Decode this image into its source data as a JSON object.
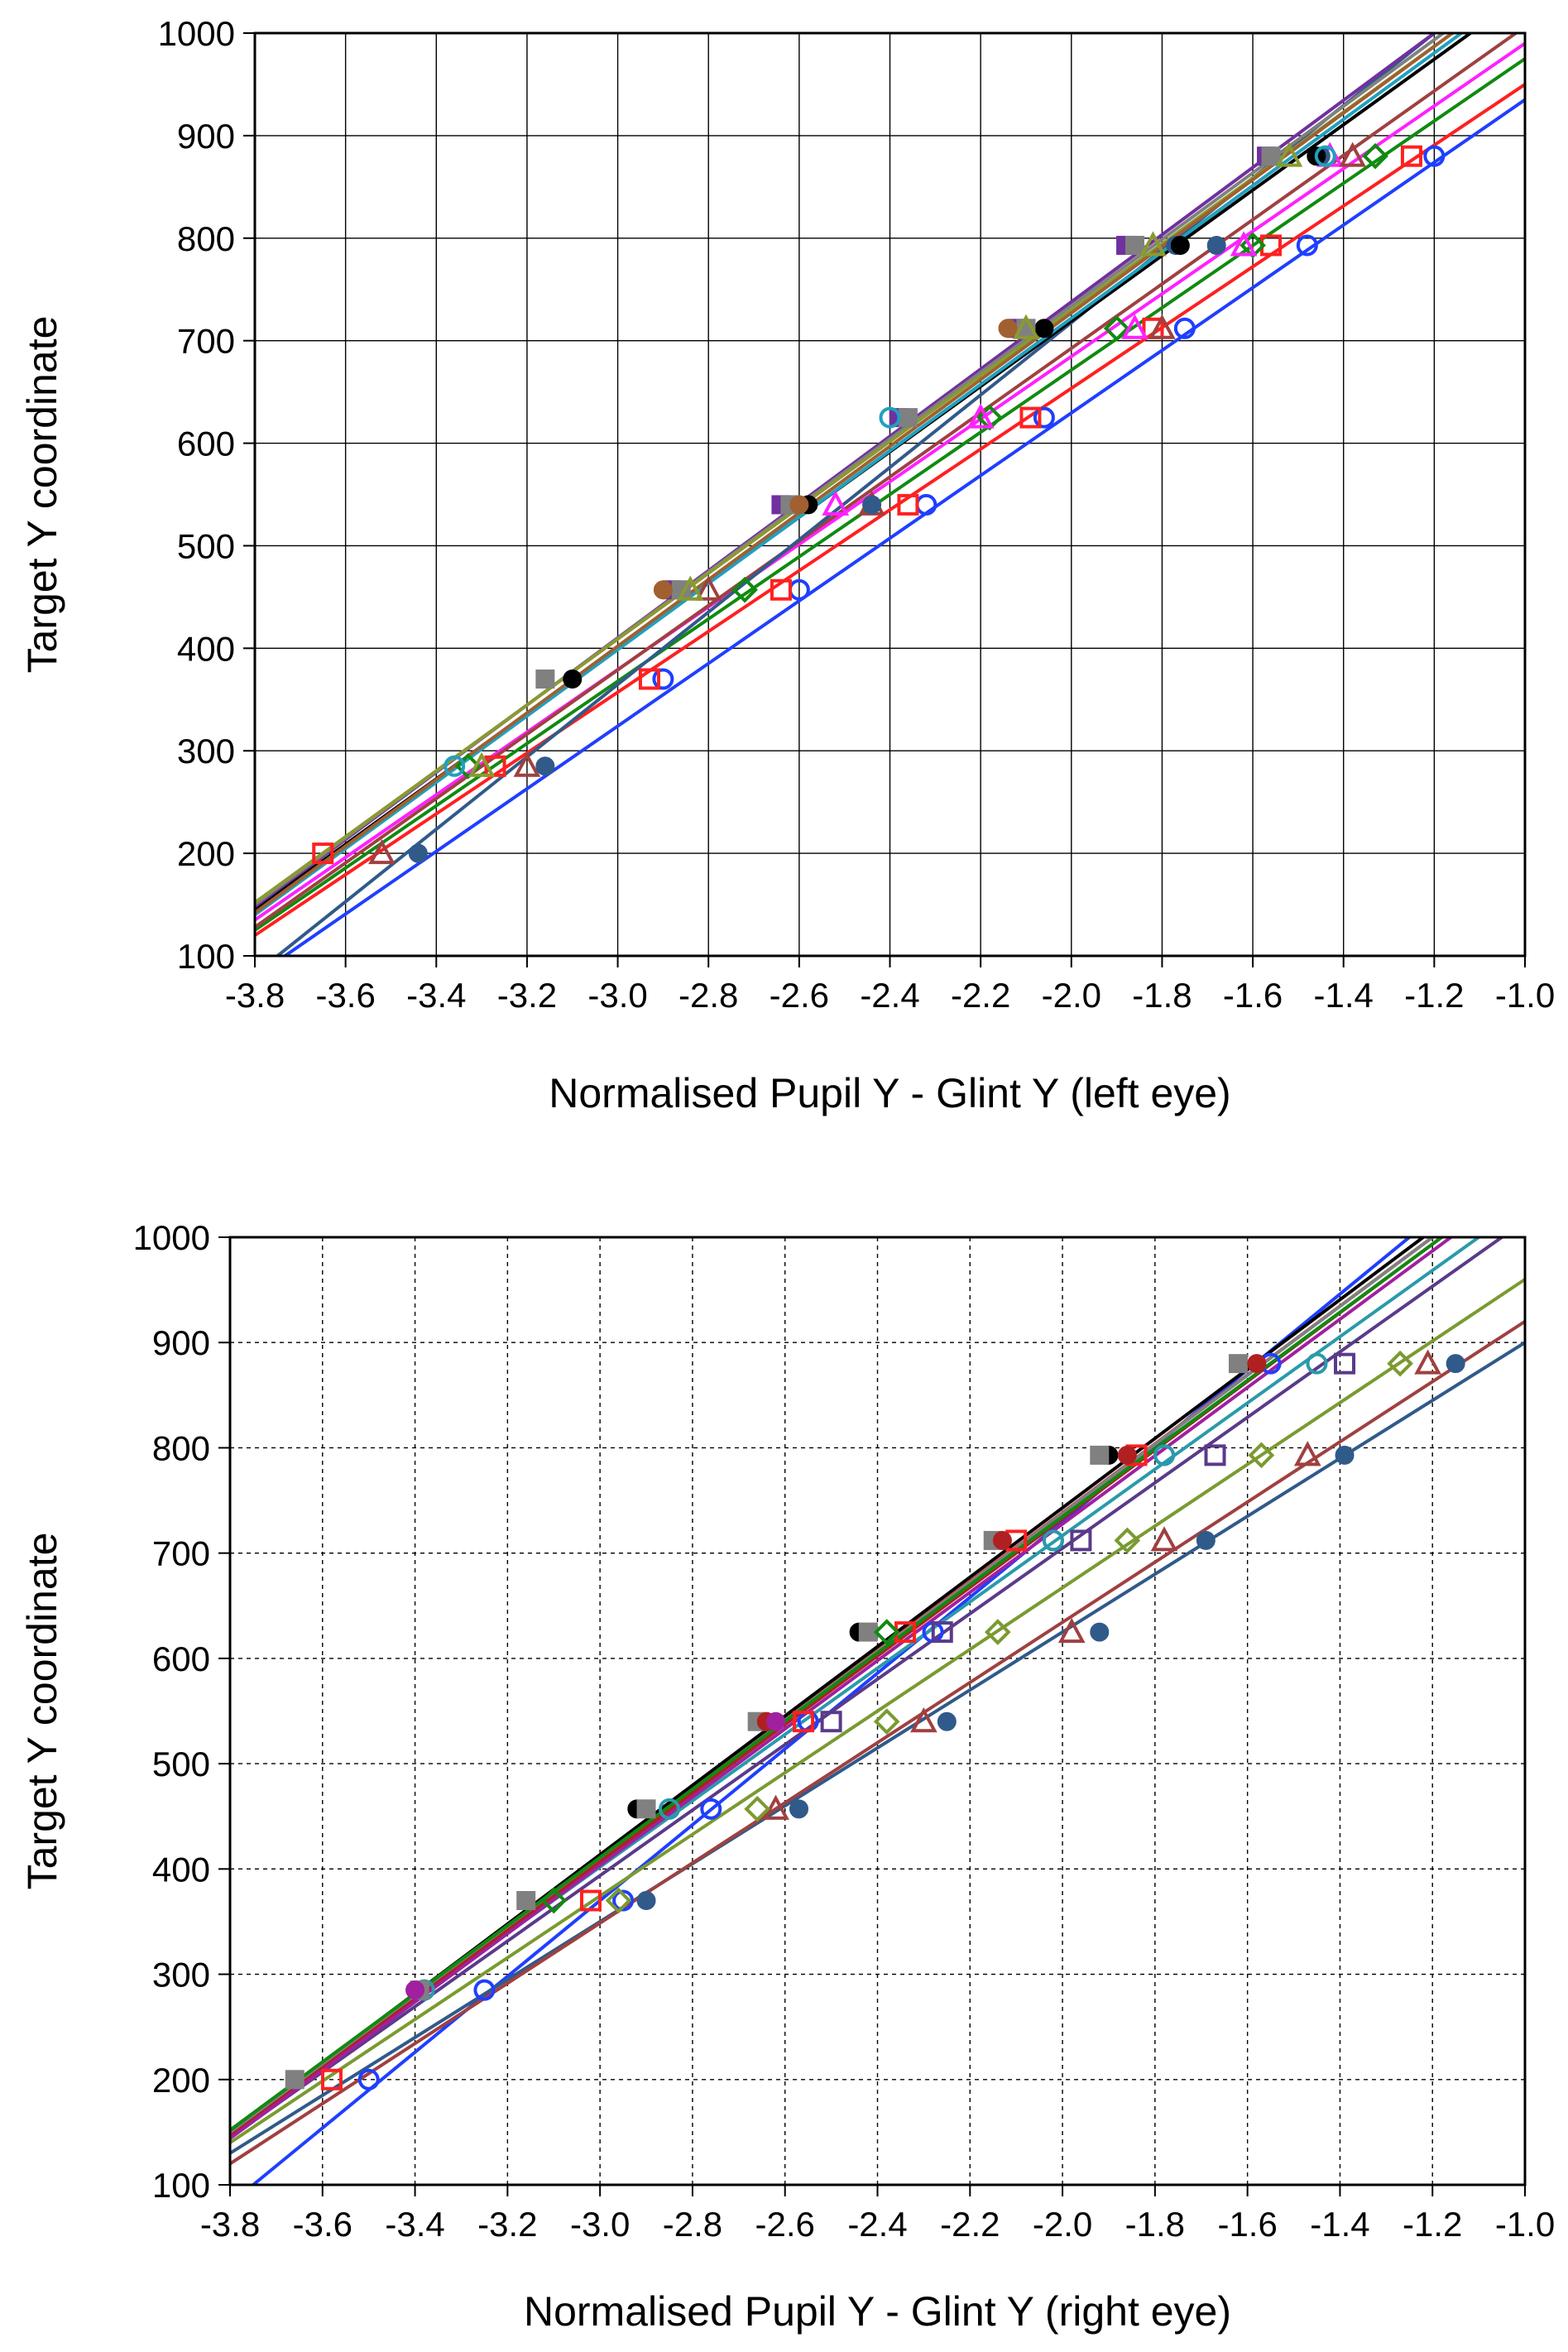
{
  "chart_data": [
    {
      "type": "scatter",
      "title": "",
      "xlabel": "Normalised Pupil Y - Glint Y (left eye)",
      "ylabel": "Target Y coordinate",
      "xlim": [
        -3.8,
        -1.0
      ],
      "ylim": [
        100,
        1000
      ],
      "x_ticks": [
        "-3.8",
        "-3.6",
        "-3.4",
        "-3.2",
        "-3.0",
        "-2.8",
        "-2.6",
        "-2.4",
        "-2.2",
        "-2.0",
        "-1.8",
        "-1.6",
        "-1.4",
        "-1.2",
        "-1.0"
      ],
      "y_ticks": [
        "100",
        "200",
        "300",
        "400",
        "500",
        "600",
        "700",
        "800",
        "900",
        "1000"
      ],
      "grid": "solid",
      "legend": "none",
      "series": [
        {
          "color": "#1f3fff",
          "marker": "circle-open",
          "line": [
            [
              -3.75,
              95
            ],
            [
              -1.0,
              935
            ]
          ],
          "points": [
            [
              -2.9,
              370
            ],
            [
              -2.6,
              457
            ],
            [
              -2.32,
              540
            ],
            [
              -2.06,
              625
            ],
            [
              -1.75,
              712
            ],
            [
              -1.48,
              793
            ],
            [
              -1.2,
              880
            ]
          ]
        },
        {
          "color": "#ff2020",
          "marker": "square-open",
          "line": [
            [
              -3.8,
              120
            ],
            [
              -1.0,
              950
            ]
          ],
          "points": [
            [
              -3.65,
              200
            ],
            [
              -3.27,
              285
            ],
            [
              -2.93,
              370
            ],
            [
              -2.64,
              457
            ],
            [
              -2.36,
              540
            ],
            [
              -2.09,
              625
            ],
            [
              -1.82,
              712
            ],
            [
              -1.56,
              793
            ],
            [
              -1.25,
              880
            ]
          ]
        },
        {
          "color": "#108a10",
          "marker": "diamond-open",
          "line": [
            [
              -3.8,
              125
            ],
            [
              -1.0,
              975
            ]
          ],
          "points": [
            [
              -3.33,
              285
            ],
            [
              -2.72,
              457
            ],
            [
              -2.18,
              625
            ],
            [
              -1.9,
              712
            ],
            [
              -1.6,
              793
            ],
            [
              -1.33,
              880
            ]
          ]
        },
        {
          "color": "#ff20ff",
          "marker": "triangle-open",
          "line": [
            [
              -3.8,
              135
            ],
            [
              -1.0,
              990
            ]
          ],
          "points": [
            [
              -2.52,
              540
            ],
            [
              -2.2,
              625
            ],
            [
              -1.86,
              712
            ],
            [
              -1.62,
              793
            ],
            [
              -1.43,
              880
            ]
          ]
        },
        {
          "color": "#a04040",
          "marker": "triangle-open",
          "line": [
            [
              -3.8,
              128
            ],
            [
              -1.02,
              1000
            ]
          ],
          "points": [
            [
              -3.52,
              200
            ],
            [
              -3.2,
              285
            ],
            [
              -2.8,
              457
            ],
            [
              -2.44,
              540
            ],
            [
              -1.8,
              712
            ],
            [
              -1.38,
              880
            ]
          ]
        },
        {
          "color": "#305a8a",
          "marker": "circle-filled",
          "line": [
            [
              -3.75,
              100
            ],
            [
              -1.2,
              1000
            ]
          ],
          "points": [
            [
              -3.44,
              200
            ],
            [
              -3.16,
              285
            ],
            [
              -2.44,
              540
            ],
            [
              -1.77,
              793
            ],
            [
              -1.68,
              793
            ],
            [
              -1.45,
              880
            ]
          ]
        },
        {
          "color": "#000000",
          "marker": "circle-filled",
          "line": [
            [
              -3.8,
              145
            ],
            [
              -1.12,
              1000
            ]
          ],
          "points": [
            [
              -3.1,
              370
            ],
            [
              -2.58,
              540
            ],
            [
              -2.06,
              712
            ],
            [
              -1.76,
              793
            ],
            [
              -1.46,
              880
            ]
          ]
        },
        {
          "color": "#7030a0",
          "marker": "square-filled",
          "line": [
            [
              -3.8,
              148
            ],
            [
              -1.2,
              1000
            ]
          ],
          "points": [
            [
              -2.88,
              457
            ],
            [
              -2.64,
              540
            ],
            [
              -2.38,
              625
            ],
            [
              -2.12,
              712
            ],
            [
              -1.88,
              793
            ],
            [
              -1.57,
              880
            ]
          ]
        },
        {
          "color": "#808080",
          "marker": "square-filled",
          "line": [
            [
              -3.8,
              150
            ],
            [
              -1.18,
              1000
            ]
          ],
          "points": [
            [
              -3.16,
              370
            ],
            [
              -2.86,
              457
            ],
            [
              -2.62,
              540
            ],
            [
              -2.36,
              625
            ],
            [
              -2.1,
              712
            ],
            [
              -1.86,
              793
            ],
            [
              -1.56,
              880
            ]
          ]
        },
        {
          "color": "#8a9a30",
          "marker": "triangle-open",
          "line": [
            [
              -3.8,
              152
            ],
            [
              -1.16,
              1000
            ]
          ],
          "points": [
            [
              -3.3,
              285
            ],
            [
              -2.84,
              457
            ],
            [
              -2.1,
              712
            ],
            [
              -1.82,
              793
            ],
            [
              -1.52,
              880
            ]
          ]
        },
        {
          "color": "#20a0c0",
          "marker": "circle-open",
          "line": [
            [
              -3.8,
              140
            ],
            [
              -1.14,
              1000
            ]
          ],
          "points": [
            [
              -3.36,
              285
            ],
            [
              -2.4,
              625
            ],
            [
              -1.44,
              880
            ]
          ]
        },
        {
          "color": "#a06030",
          "marker": "circle-filled",
          "line": [
            [
              -3.8,
              142
            ],
            [
              -1.16,
              1000
            ]
          ],
          "points": [
            [
              -2.9,
              457
            ],
            [
              -2.6,
              540
            ],
            [
              -2.14,
              712
            ]
          ]
        }
      ]
    },
    {
      "type": "scatter",
      "title": "",
      "xlabel": "Normalised Pupil Y - Glint Y (right eye)",
      "ylabel": "Target Y coordinate",
      "xlim": [
        -3.8,
        -1.0
      ],
      "ylim": [
        100,
        1000
      ],
      "x_ticks": [
        "-3.8",
        "-3.6",
        "-3.4",
        "-3.2",
        "-3.0",
        "-2.8",
        "-2.6",
        "-2.4",
        "-2.2",
        "-2.0",
        "-1.8",
        "-1.6",
        "-1.4",
        "-1.2",
        "-1.0"
      ],
      "y_ticks": [
        "100",
        "200",
        "300",
        "400",
        "500",
        "600",
        "700",
        "800",
        "900",
        "1000"
      ],
      "grid": "dotted",
      "legend": "none",
      "series": [
        {
          "color": "#1f3fff",
          "marker": "circle-open",
          "line": [
            [
              -3.75,
              100
            ],
            [
              -1.25,
              1000
            ]
          ],
          "points": [
            [
              -3.5,
              200
            ],
            [
              -3.25,
              285
            ],
            [
              -2.95,
              370
            ],
            [
              -2.76,
              457
            ],
            [
              -2.55,
              540
            ],
            [
              -2.28,
              625
            ],
            [
              -2.02,
              712
            ],
            [
              -1.78,
              793
            ],
            [
              -1.55,
              880
            ]
          ]
        },
        {
          "color": "#305a8a",
          "marker": "circle-filled",
          "line": [
            [
              -3.8,
              130
            ],
            [
              -1.0,
              900
            ]
          ],
          "points": [
            [
              -2.9,
              370
            ],
            [
              -2.57,
              457
            ],
            [
              -2.25,
              540
            ],
            [
              -1.92,
              625
            ],
            [
              -1.69,
              712
            ],
            [
              -1.39,
              793
            ],
            [
              -1.15,
              880
            ]
          ]
        },
        {
          "color": "#a04040",
          "marker": "triangle-open",
          "line": [
            [
              -3.8,
              120
            ],
            [
              -1.0,
              920
            ]
          ],
          "points": [
            [
              -2.62,
              457
            ],
            [
              -2.3,
              540
            ],
            [
              -1.98,
              625
            ],
            [
              -1.78,
              712
            ],
            [
              -1.47,
              793
            ],
            [
              -1.21,
              880
            ]
          ]
        },
        {
          "color": "#7a9a30",
          "marker": "diamond-open",
          "line": [
            [
              -3.8,
              140
            ],
            [
              -1.0,
              960
            ]
          ],
          "points": [
            [
              -2.96,
              370
            ],
            [
              -2.66,
              457
            ],
            [
              -2.38,
              540
            ],
            [
              -2.14,
              625
            ],
            [
              -1.86,
              712
            ],
            [
              -1.57,
              793
            ],
            [
              -1.27,
              880
            ]
          ]
        },
        {
          "color": "#5a3a8a",
          "marker": "square-open",
          "line": [
            [
              -3.8,
              145
            ],
            [
              -1.05,
              1000
            ]
          ],
          "points": [
            [
              -2.5,
              540
            ],
            [
              -2.26,
              625
            ],
            [
              -1.96,
              712
            ],
            [
              -1.67,
              793
            ],
            [
              -1.39,
              880
            ]
          ]
        },
        {
          "color": "#2a9aaa",
          "marker": "circle-open",
          "line": [
            [
              -3.8,
              150
            ],
            [
              -1.1,
              1000
            ]
          ],
          "points": [
            [
              -3.38,
              285
            ],
            [
              -2.85,
              457
            ],
            [
              -2.02,
              712
            ],
            [
              -1.78,
              793
            ],
            [
              -1.45,
              880
            ]
          ]
        },
        {
          "color": "#ff2020",
          "marker": "square-open",
          "line": [
            [
              -3.8,
              150
            ],
            [
              -1.2,
              1000
            ]
          ],
          "points": [
            [
              -3.58,
              200
            ],
            [
              -3.02,
              370
            ],
            [
              -2.56,
              540
            ],
            [
              -2.34,
              625
            ],
            [
              -2.1,
              712
            ],
            [
              -1.84,
              793
            ]
          ]
        },
        {
          "color": "#000000",
          "marker": "circle-filled",
          "line": [
            [
              -3.8,
              150
            ],
            [
              -1.22,
              1000
            ]
          ],
          "points": [
            [
              -2.92,
              457
            ],
            [
              -2.44,
              625
            ],
            [
              -1.9,
              793
            ]
          ]
        },
        {
          "color": "#808080",
          "marker": "square-filled",
          "line": [
            [
              -3.8,
              148
            ],
            [
              -1.2,
              1000
            ]
          ],
          "points": [
            [
              -3.66,
              200
            ],
            [
              -3.39,
              285
            ],
            [
              -3.16,
              370
            ],
            [
              -2.9,
              457
            ],
            [
              -2.66,
              540
            ],
            [
              -2.42,
              625
            ],
            [
              -2.15,
              712
            ],
            [
              -1.92,
              793
            ],
            [
              -1.62,
              880
            ]
          ]
        },
        {
          "color": "#b02020",
          "marker": "circle-filled",
          "line": [
            [
              -3.8,
              146
            ],
            [
              -1.18,
              1000
            ]
          ],
          "points": [
            [
              -2.64,
              540
            ],
            [
              -2.13,
              712
            ],
            [
              -1.86,
              793
            ],
            [
              -1.58,
              880
            ]
          ]
        },
        {
          "color": "#a020a0",
          "marker": "circle-filled",
          "line": [
            [
              -3.8,
              144
            ],
            [
              -1.16,
              1000
            ]
          ],
          "points": [
            [
              -3.4,
              285
            ],
            [
              -2.62,
              540
            ]
          ]
        },
        {
          "color": "#108a10",
          "marker": "diamond-open",
          "line": [
            [
              -3.8,
              152
            ],
            [
              -1.18,
              1000
            ]
          ],
          "points": [
            [
              -3.1,
              370
            ],
            [
              -2.38,
              625
            ]
          ]
        }
      ]
    }
  ]
}
